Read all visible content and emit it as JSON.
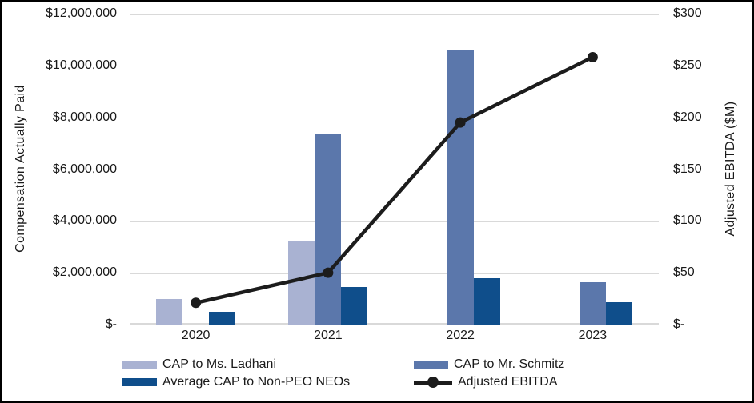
{
  "chart_data": {
    "type": "combo_bar_line",
    "categories": [
      "2020",
      "2021",
      "2022",
      "2023"
    ],
    "series": [
      {
        "name": "CAP to Ms. Ladhani",
        "type": "bar",
        "axis": "left",
        "color": "#a9b2d2",
        "values": [
          1000000,
          3200000,
          null,
          null
        ]
      },
      {
        "name": "CAP to Mr. Schmitz",
        "type": "bar",
        "axis": "left",
        "color": "#5b77ab",
        "values": [
          null,
          7350000,
          10600000,
          1630000
        ]
      },
      {
        "name": "Average CAP to Non-PEO NEOs",
        "type": "bar",
        "axis": "left",
        "color": "#0f4e8b",
        "values": [
          480000,
          1450000,
          1800000,
          860000
        ]
      },
      {
        "name": "Adjusted EBITDA",
        "type": "line",
        "axis": "right",
        "color": "#1c1c1c",
        "values": [
          21,
          50,
          195,
          258
        ]
      }
    ],
    "left_axis": {
      "title": "Compensation Actually Paid",
      "min": 0,
      "max": 12000000,
      "tick_labels": [
        "$12,000,000",
        "$10,000,000",
        "$8,000,000",
        "$6,000,000",
        "$4,000,000",
        "$2,000,000",
        "$-"
      ]
    },
    "right_axis": {
      "title": "Adjusted EBITDA ($M)",
      "min": 0,
      "max": 300,
      "tick_labels": [
        "$300",
        "$250",
        "$200",
        "$150",
        "$100",
        "$50",
        "$-"
      ]
    },
    "grid": true,
    "legend_position": "bottom"
  },
  "legend": {
    "items": [
      {
        "label": "CAP to Ms. Ladhani",
        "marker": "bar",
        "color": "#a9b2d2"
      },
      {
        "label": "CAP to Mr. Schmitz",
        "marker": "bar",
        "color": "#5b77ab"
      },
      {
        "label": "Average CAP to Non-PEO NEOs",
        "marker": "bar",
        "color": "#0f4e8b"
      },
      {
        "label": "Adjusted EBITDA",
        "marker": "line",
        "color": "#1c1c1c"
      }
    ]
  },
  "colors": {
    "gridline": "#d9d9d9",
    "text": "#1a1a1a",
    "background": "#ffffff",
    "border": "#000000"
  }
}
